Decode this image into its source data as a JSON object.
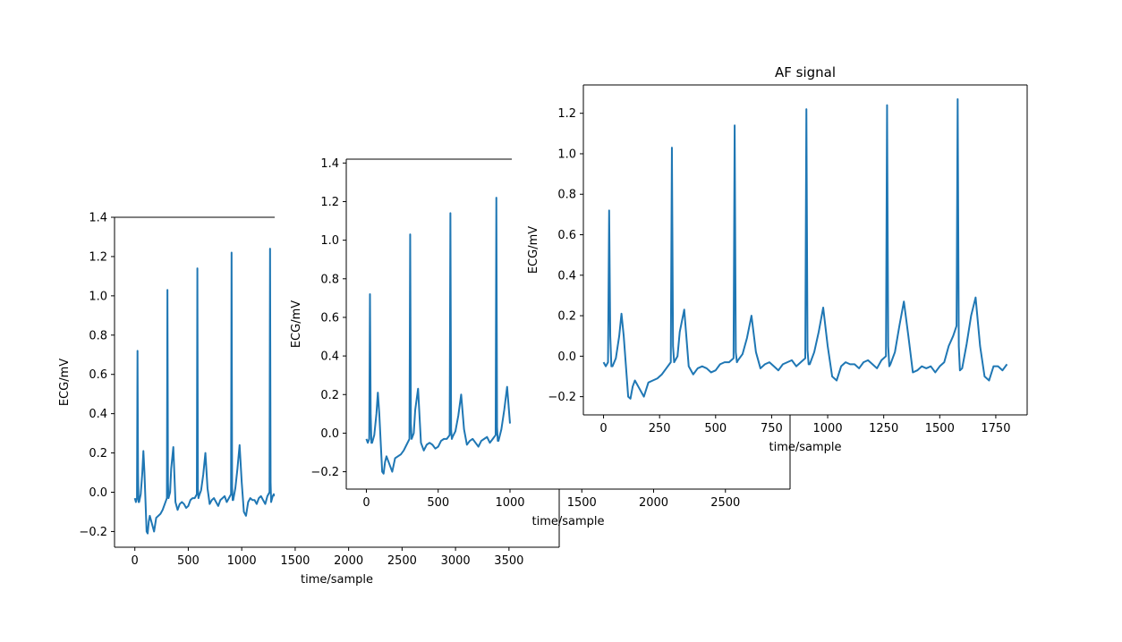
{
  "colors": {
    "series": "#1f77b4",
    "axes": "#000000",
    "background": "#ffffff"
  },
  "chart_data": [
    {
      "type": "line",
      "title": "",
      "xlabel": "time/sample",
      "ylabel": "ECG/mV",
      "xlim": [
        -190,
        3970
      ],
      "ylim": [
        -0.28,
        1.4
      ],
      "xticks": [
        0,
        500,
        1000,
        1500,
        2000,
        2500,
        3000,
        3500
      ],
      "yticks": [
        -0.2,
        0.0,
        0.2,
        0.4,
        0.6,
        0.8,
        1.0,
        1.2,
        1.4
      ],
      "xtick_labels": [
        "0",
        "500",
        "1000",
        "1500",
        "2000",
        "2500",
        "3000",
        "3500"
      ],
      "ytick_labels": [
        "−0.2",
        "0.0",
        "0.2",
        "0.4",
        "0.6",
        "0.8",
        "1.0",
        "1.2",
        "1.4"
      ],
      "spines": {
        "top": true,
        "bottom": true,
        "left": true,
        "right": true
      },
      "series": [
        {
          "x": [
            0,
            10,
            20,
            25,
            30,
            35,
            40,
            55,
            70,
            80,
            90,
            100,
            110,
            120,
            130,
            140,
            160,
            180,
            200,
            220,
            240,
            260,
            280,
            300,
            305,
            310,
            315,
            320,
            330,
            340,
            360,
            380,
            400,
            420,
            440,
            460,
            480,
            500,
            520,
            540,
            560,
            580,
            585,
            590,
            595,
            600,
            620,
            640,
            660,
            680,
            700,
            720,
            740,
            760,
            780,
            800,
            820,
            840,
            860,
            880,
            900,
            905,
            910,
            915,
            920,
            940,
            960,
            980,
            1000,
            1020,
            1040,
            1060,
            1080,
            1100,
            1120,
            1140,
            1160,
            1180,
            1200,
            1220,
            1240,
            1260,
            1265,
            1270,
            1275,
            1280,
            1290,
            1300,
            1310
          ],
          "y": [
            -0.03,
            -0.05,
            -0.03,
            0.72,
            0.1,
            -0.05,
            -0.05,
            -0.01,
            0.1,
            0.21,
            0.1,
            -0.05,
            -0.2,
            -0.21,
            -0.15,
            -0.12,
            -0.16,
            -0.2,
            -0.13,
            -0.12,
            -0.11,
            -0.09,
            -0.06,
            -0.03,
            1.03,
            0.05,
            -0.03,
            -0.02,
            0.0,
            0.12,
            0.23,
            -0.05,
            -0.09,
            -0.06,
            -0.05,
            -0.06,
            -0.08,
            -0.07,
            -0.04,
            -0.03,
            -0.03,
            -0.01,
            1.14,
            0.02,
            -0.03,
            -0.02,
            0.01,
            0.09,
            0.2,
            0.02,
            -0.06,
            -0.04,
            -0.03,
            -0.05,
            -0.07,
            -0.04,
            -0.03,
            -0.02,
            -0.05,
            -0.03,
            -0.01,
            1.22,
            0.03,
            -0.04,
            -0.04,
            0.02,
            0.12,
            0.24,
            0.05,
            -0.1,
            -0.12,
            -0.05,
            -0.03,
            -0.04,
            -0.04,
            -0.06,
            -0.03,
            -0.02,
            -0.04,
            -0.06,
            -0.02,
            0.0,
            1.24,
            0.05,
            -0.05,
            -0.04,
            -0.02,
            -0.01,
            -0.02
          ]
        }
      ]
    },
    {
      "type": "line",
      "title": "",
      "xlabel": "time/sample",
      "ylabel": "ECG/mV",
      "xlim": [
        -140,
        2950
      ],
      "ylim": [
        -0.29,
        1.42
      ],
      "xticks": [
        0,
        500,
        1000,
        1500,
        2000,
        2500
      ],
      "yticks": [
        -0.2,
        0.0,
        0.2,
        0.4,
        0.6,
        0.8,
        1.0,
        1.2,
        1.4
      ],
      "xtick_labels": [
        "0",
        "500",
        "1000",
        "1500",
        "2000",
        "2500"
      ],
      "ytick_labels": [
        "−0.2",
        "0.0",
        "0.2",
        "0.4",
        "0.6",
        "0.8",
        "1.0",
        "1.2",
        "1.4"
      ],
      "spines": {
        "top": true,
        "bottom": true,
        "left": true,
        "right": true
      },
      "series": [
        {
          "x": [
            0,
            10,
            20,
            25,
            30,
            35,
            40,
            55,
            70,
            80,
            90,
            100,
            110,
            120,
            130,
            140,
            160,
            180,
            200,
            220,
            240,
            260,
            280,
            300,
            305,
            310,
            315,
            320,
            330,
            340,
            360,
            380,
            400,
            420,
            440,
            460,
            480,
            500,
            520,
            540,
            560,
            580,
            585,
            590,
            595,
            600,
            620,
            640,
            660,
            680,
            700,
            720,
            740,
            760,
            780,
            800,
            820,
            840,
            860,
            880,
            900,
            905,
            910,
            915,
            920,
            940,
            960,
            980,
            1000
          ],
          "y": [
            -0.03,
            -0.05,
            -0.03,
            0.72,
            0.1,
            -0.05,
            -0.05,
            -0.01,
            0.1,
            0.21,
            0.1,
            -0.05,
            -0.2,
            -0.21,
            -0.15,
            -0.12,
            -0.16,
            -0.2,
            -0.13,
            -0.12,
            -0.11,
            -0.09,
            -0.06,
            -0.03,
            1.03,
            0.05,
            -0.03,
            -0.02,
            0.0,
            0.12,
            0.23,
            -0.05,
            -0.09,
            -0.06,
            -0.05,
            -0.06,
            -0.08,
            -0.07,
            -0.04,
            -0.03,
            -0.03,
            -0.01,
            1.14,
            0.02,
            -0.03,
            -0.02,
            0.01,
            0.09,
            0.2,
            0.02,
            -0.06,
            -0.04,
            -0.03,
            -0.05,
            -0.07,
            -0.04,
            -0.03,
            -0.02,
            -0.05,
            -0.03,
            -0.01,
            1.22,
            0.03,
            -0.04,
            -0.04,
            0.02,
            0.12,
            0.24,
            0.05
          ]
        }
      ]
    },
    {
      "type": "line",
      "title": "AF signal",
      "xlabel": "time/sample",
      "ylabel": "ECG/mV",
      "xlim": [
        -90,
        1890
      ],
      "ylim": [
        -0.29,
        1.34
      ],
      "xticks": [
        0,
        250,
        500,
        750,
        1000,
        1250,
        1500,
        1750
      ],
      "yticks": [
        -0.2,
        0.0,
        0.2,
        0.4,
        0.6,
        0.8,
        1.0,
        1.2
      ],
      "xtick_labels": [
        "0",
        "250",
        "500",
        "750",
        "1000",
        "1250",
        "1500",
        "1750"
      ],
      "ytick_labels": [
        "−0.2",
        "0.0",
        "0.2",
        "0.4",
        "0.6",
        "0.8",
        "1.0",
        "1.2"
      ],
      "spines": {
        "top": true,
        "bottom": true,
        "left": true,
        "right": true
      },
      "series": [
        {
          "x": [
            0,
            10,
            20,
            25,
            30,
            35,
            40,
            55,
            70,
            80,
            90,
            100,
            110,
            120,
            130,
            140,
            160,
            180,
            200,
            220,
            240,
            260,
            280,
            300,
            305,
            310,
            315,
            320,
            330,
            340,
            360,
            380,
            400,
            420,
            440,
            460,
            480,
            500,
            520,
            540,
            560,
            580,
            585,
            590,
            595,
            600,
            620,
            640,
            660,
            680,
            700,
            720,
            740,
            760,
            780,
            800,
            820,
            840,
            860,
            880,
            900,
            905,
            910,
            915,
            920,
            940,
            960,
            980,
            1000,
            1020,
            1040,
            1060,
            1080,
            1100,
            1120,
            1140,
            1160,
            1180,
            1200,
            1220,
            1240,
            1260,
            1265,
            1270,
            1275,
            1280,
            1300,
            1320,
            1340,
            1360,
            1380,
            1400,
            1420,
            1440,
            1460,
            1480,
            1500,
            1520,
            1540,
            1560,
            1575,
            1580,
            1585,
            1590,
            1600,
            1620,
            1640,
            1660,
            1680,
            1700,
            1720,
            1740,
            1760,
            1780,
            1800
          ],
          "y": [
            -0.03,
            -0.05,
            -0.03,
            0.72,
            0.1,
            -0.05,
            -0.05,
            -0.01,
            0.1,
            0.21,
            0.1,
            -0.05,
            -0.2,
            -0.21,
            -0.15,
            -0.12,
            -0.16,
            -0.2,
            -0.13,
            -0.12,
            -0.11,
            -0.09,
            -0.06,
            -0.03,
            1.03,
            0.05,
            -0.03,
            -0.02,
            0.0,
            0.12,
            0.23,
            -0.05,
            -0.09,
            -0.06,
            -0.05,
            -0.06,
            -0.08,
            -0.07,
            -0.04,
            -0.03,
            -0.03,
            -0.01,
            1.14,
            0.02,
            -0.03,
            -0.02,
            0.01,
            0.09,
            0.2,
            0.02,
            -0.06,
            -0.04,
            -0.03,
            -0.05,
            -0.07,
            -0.04,
            -0.03,
            -0.02,
            -0.05,
            -0.03,
            -0.01,
            1.22,
            0.03,
            -0.04,
            -0.04,
            0.02,
            0.12,
            0.24,
            0.05,
            -0.1,
            -0.12,
            -0.05,
            -0.03,
            -0.04,
            -0.04,
            -0.06,
            -0.03,
            -0.02,
            -0.04,
            -0.06,
            -0.02,
            0.0,
            1.24,
            0.05,
            -0.05,
            -0.04,
            0.02,
            0.15,
            0.27,
            0.1,
            -0.08,
            -0.07,
            -0.05,
            -0.06,
            -0.05,
            -0.08,
            -0.05,
            -0.03,
            0.05,
            0.1,
            0.15,
            1.27,
            0.05,
            -0.07,
            -0.06,
            0.06,
            0.2,
            0.29,
            0.05,
            -0.1,
            -0.12,
            -0.05,
            -0.05,
            -0.07,
            -0.04
          ]
        }
      ]
    }
  ]
}
